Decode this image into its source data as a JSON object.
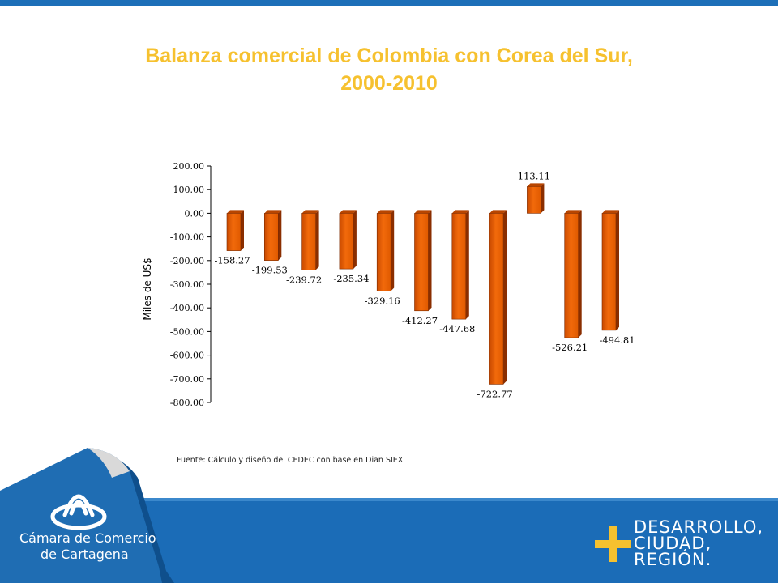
{
  "title_line1": "Balanza comercial de Colombia con Corea del Sur,",
  "title_line2": "2000-2010",
  "source": "Fuente: Cálculo y diseño del CEDEC con base en Dian SIEX",
  "logo": {
    "line1": "Cámara de Comercio",
    "line2": "de Cartagena"
  },
  "slogan": {
    "line1": "DESARROLLO,",
    "line2": "CIUDAD,",
    "line3": "REGIÓN."
  },
  "colors": {
    "bar": "#f26a0b",
    "bar_dark": "#8a2e00",
    "title": "#f6c12f",
    "footer": "#1b6cb7"
  },
  "chart_data": {
    "type": "bar",
    "title": "Balanza comercial de Colombia con Corea del Sur, 2000-2010",
    "ylabel": "Miles de US$",
    "ylim": [
      -800,
      200
    ],
    "yticks": [
      "200.00",
      "100.00",
      "0.00",
      "-100.00",
      "-200.00",
      "-300.00",
      "-400.00",
      "-500.00",
      "-600.00",
      "-700.00",
      "-800.00"
    ],
    "values": [
      -158.27,
      -199.53,
      -239.72,
      -235.34,
      -329.16,
      -412.27,
      -447.68,
      -722.77,
      113.11,
      -526.21,
      -494.81
    ],
    "labels": [
      "-158.27",
      "-199.53",
      "-239.72",
      "-235.34",
      "-329.16",
      "-412.27",
      "-447.68",
      "-722.77",
      "113.11",
      "-526.21",
      "-494.81"
    ]
  }
}
